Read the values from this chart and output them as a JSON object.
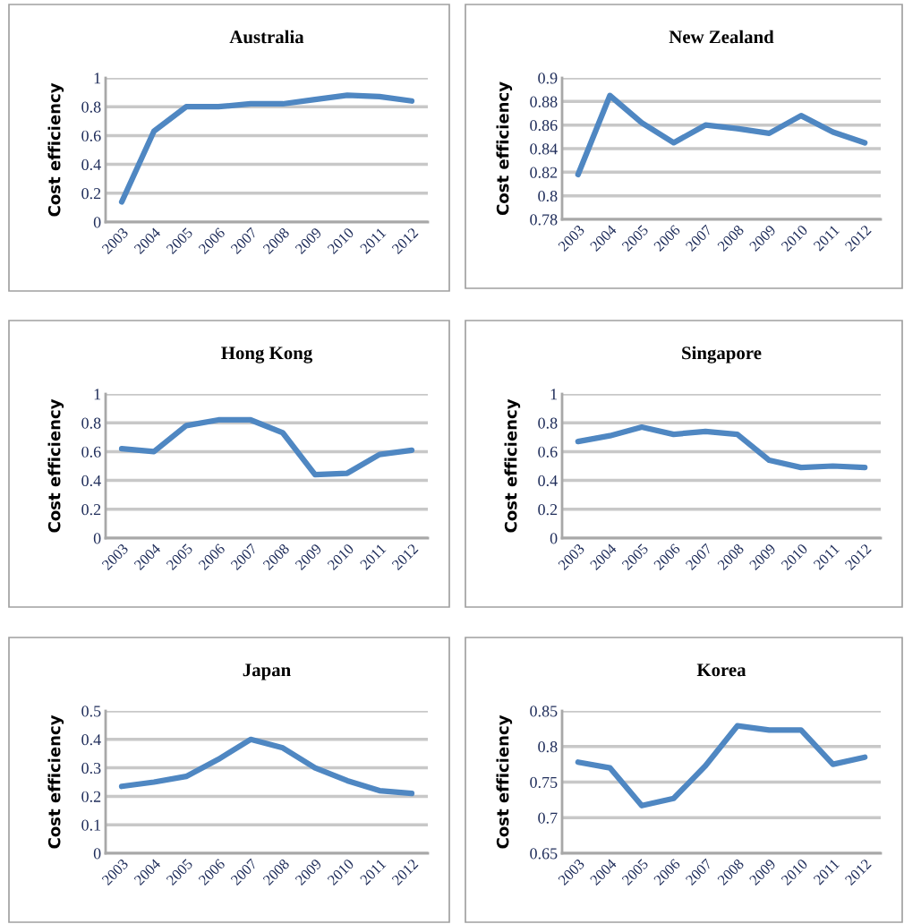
{
  "chart_data": [
    {
      "type": "line",
      "title": "Australia",
      "ylabel": "Cost efficiency",
      "categories": [
        "2003",
        "2004",
        "2005",
        "2006",
        "2007",
        "2008",
        "2009",
        "2010",
        "2011",
        "2012"
      ],
      "series": [
        {
          "color": "#4f87c2",
          "values": [
            0.14,
            0.63,
            0.8,
            0.8,
            0.82,
            0.82,
            0.85,
            0.88,
            0.87,
            0.84
          ]
        }
      ],
      "ylim": [
        0,
        1
      ],
      "yticks": [
        0,
        0.2,
        0.4,
        0.6,
        0.8,
        1
      ],
      "grid": "y"
    },
    {
      "type": "line",
      "title": "New Zealand",
      "ylabel": "Cost efficiency",
      "categories": [
        "2003",
        "2004",
        "2005",
        "2006",
        "2007",
        "2008",
        "2009",
        "2010",
        "2011",
        "2012"
      ],
      "series": [
        {
          "color": "#4f87c2",
          "values": [
            0.818,
            0.885,
            0.862,
            0.845,
            0.86,
            0.857,
            0.853,
            0.868,
            0.854,
            0.845
          ]
        }
      ],
      "ylim": [
        0.78,
        0.9
      ],
      "yticks": [
        0.78,
        0.8,
        0.82,
        0.84,
        0.86,
        0.88,
        0.9
      ],
      "grid": "y"
    },
    {
      "type": "line",
      "title": "Hong Kong",
      "ylabel": "Cost efficiency",
      "categories": [
        "2003",
        "2004",
        "2005",
        "2006",
        "2007",
        "2008",
        "2009",
        "2010",
        "2011",
        "2012"
      ],
      "series": [
        {
          "color": "#4f87c2",
          "values": [
            0.62,
            0.6,
            0.78,
            0.82,
            0.82,
            0.73,
            0.44,
            0.45,
            0.58,
            0.61
          ]
        }
      ],
      "ylim": [
        0,
        1
      ],
      "yticks": [
        0,
        0.2,
        0.4,
        0.6,
        0.8,
        1
      ],
      "grid": "y"
    },
    {
      "type": "line",
      "title": "Singapore",
      "ylabel": "Cost efficiency",
      "categories": [
        "2003",
        "2004",
        "2005",
        "2006",
        "2007",
        "2008",
        "2009",
        "2010",
        "2011",
        "2012"
      ],
      "series": [
        {
          "color": "#4f87c2",
          "values": [
            0.67,
            0.71,
            0.77,
            0.72,
            0.74,
            0.72,
            0.54,
            0.49,
            0.5,
            0.49
          ]
        }
      ],
      "ylim": [
        0,
        1
      ],
      "yticks": [
        0,
        0.2,
        0.4,
        0.6,
        0.8,
        1
      ],
      "grid": "y"
    },
    {
      "type": "line",
      "title": "Japan",
      "ylabel": "Cost efficiency",
      "categories": [
        "2003",
        "2004",
        "2005",
        "2006",
        "2007",
        "2008",
        "2009",
        "2010",
        "2011",
        "2012"
      ],
      "series": [
        {
          "color": "#4f87c2",
          "values": [
            0.235,
            0.25,
            0.27,
            0.33,
            0.4,
            0.37,
            0.3,
            0.255,
            0.22,
            0.21
          ]
        }
      ],
      "ylim": [
        0,
        0.5
      ],
      "yticks": [
        0,
        0.1,
        0.2,
        0.3,
        0.4,
        0.5
      ],
      "grid": "y"
    },
    {
      "type": "line",
      "title": "Korea",
      "ylabel": "Cost efficiency",
      "categories": [
        "2003",
        "2004",
        "2005",
        "2006",
        "2007",
        "2008",
        "2009",
        "2010",
        "2011",
        "2012"
      ],
      "series": [
        {
          "color": "#4f87c2",
          "values": [
            0.778,
            0.77,
            0.717,
            0.727,
            0.773,
            0.829,
            0.823,
            0.823,
            0.775,
            0.785
          ]
        }
      ],
      "ylim": [
        0.65,
        0.85
      ],
      "yticks": [
        0.65,
        0.7,
        0.75,
        0.8,
        0.85
      ],
      "grid": "y"
    }
  ]
}
